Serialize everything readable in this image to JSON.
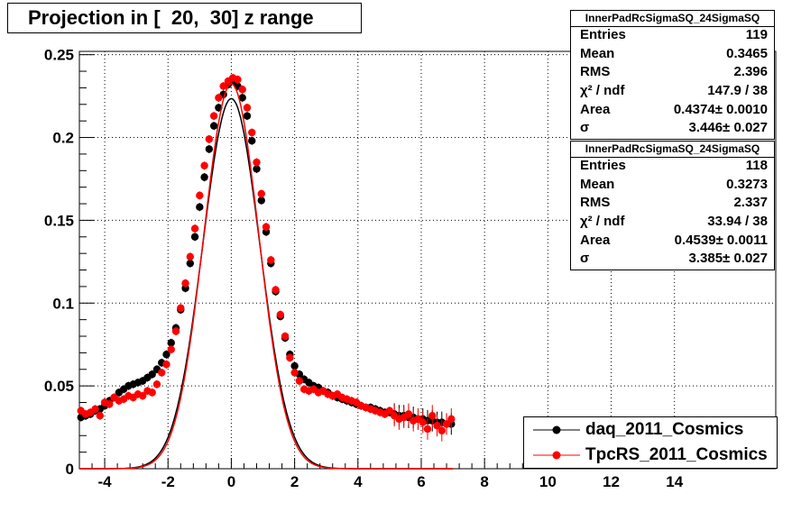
{
  "title": "Projection in [  20,  30] z range",
  "stats_boxes": [
    {
      "name": "InnerPadRcSigmaSQ_24SigmaSQ",
      "rows": [
        {
          "label": "Entries",
          "value": "119"
        },
        {
          "label": "Mean",
          "value": "0.3465"
        },
        {
          "label": "RMS",
          "value": "2.396"
        },
        {
          "label": "χ² / ndf",
          "value": "147.9 / 38"
        },
        {
          "label": "Area",
          "value": "0.4374± 0.0010"
        },
        {
          "label": "σ",
          "value": "3.446± 0.027"
        }
      ]
    },
    {
      "name": "InnerPadRcSigmaSQ_24SigmaSQ",
      "rows": [
        {
          "label": "Entries",
          "value": "118"
        },
        {
          "label": "Mean",
          "value": "0.3273"
        },
        {
          "label": "RMS",
          "value": "2.337"
        },
        {
          "label": "χ² / ndf",
          "value": "33.94 / 38"
        },
        {
          "label": "Area",
          "value": "0.4539± 0.0011"
        },
        {
          "label": "σ",
          "value": "3.385± 0.027"
        }
      ]
    }
  ],
  "legend": [
    {
      "label": "daq_2011_Cosmics",
      "color": "#000000"
    },
    {
      "label": "TpcRS_2011_Cosmics",
      "color": "#ff0000"
    }
  ],
  "chart_data": {
    "type": "scatter",
    "xlim": [
      -4.8,
      17.2
    ],
    "ylim": [
      0,
      0.252
    ],
    "xticks": [
      -4,
      -2,
      0,
      2,
      4,
      6,
      8,
      10,
      12,
      14
    ],
    "yticks": [
      0,
      0.05,
      0.1,
      0.15,
      0.2,
      0.25
    ],
    "xtick_labels": [
      "-4",
      "-2",
      "0",
      "2",
      "4",
      "6",
      "8",
      "10",
      "12",
      "14"
    ],
    "ytick_labels": [
      "0",
      "0.05",
      "0.1",
      "0.15",
      "0.2",
      "0.25"
    ],
    "grid": true,
    "series": [
      {
        "name": "daq_2011_Cosmics",
        "color": "#000000",
        "x": [
          -4.75,
          -4.6,
          -4.45,
          -4.3,
          -4.15,
          -4.0,
          -3.85,
          -3.7,
          -3.55,
          -3.4,
          -3.25,
          -3.1,
          -2.95,
          -2.8,
          -2.65,
          -2.5,
          -2.35,
          -2.2,
          -2.05,
          -1.9,
          -1.75,
          -1.6,
          -1.45,
          -1.3,
          -1.15,
          -1.0,
          -0.85,
          -0.7,
          -0.55,
          -0.4,
          -0.25,
          -0.1,
          0.05,
          0.2,
          0.35,
          0.5,
          0.65,
          0.8,
          0.95,
          1.1,
          1.25,
          1.4,
          1.55,
          1.7,
          1.85,
          2.0,
          2.15,
          2.3,
          2.45,
          2.6,
          2.75,
          2.9,
          3.05,
          3.2,
          3.35,
          3.5,
          3.65,
          3.8,
          3.95,
          4.1,
          4.25,
          4.4,
          4.55,
          4.7,
          4.85,
          5.0,
          5.15,
          5.3,
          5.45,
          5.6,
          5.75,
          5.9,
          6.05,
          6.2,
          6.35,
          6.5,
          6.65,
          6.8,
          6.95
        ],
        "y": [
          0.031,
          0.032,
          0.033,
          0.035,
          0.036,
          0.038,
          0.041,
          0.043,
          0.046,
          0.048,
          0.05,
          0.051,
          0.052,
          0.053,
          0.055,
          0.057,
          0.06,
          0.064,
          0.069,
          0.076,
          0.085,
          0.096,
          0.109,
          0.124,
          0.14,
          0.158,
          0.176,
          0.193,
          0.207,
          0.218,
          0.226,
          0.232,
          0.234,
          0.231,
          0.224,
          0.213,
          0.198,
          0.181,
          0.162,
          0.143,
          0.124,
          0.107,
          0.092,
          0.079,
          0.069,
          0.062,
          0.057,
          0.054,
          0.052,
          0.05,
          0.049,
          0.047,
          0.046,
          0.044,
          0.043,
          0.042,
          0.041,
          0.04,
          0.039,
          0.038,
          0.037,
          0.037,
          0.036,
          0.035,
          0.034,
          0.034,
          0.033,
          0.032,
          0.032,
          0.031,
          0.031,
          0.03,
          0.03,
          0.029,
          0.029,
          0.028,
          0.028,
          0.027,
          0.027
        ],
        "fit": {
          "peak": 0.2235,
          "sigma": 0.9,
          "base": 0.0
        }
      },
      {
        "name": "TpcRS_2011_Cosmics",
        "color": "#ff0000",
        "x": [
          -4.75,
          -4.6,
          -4.45,
          -4.3,
          -4.15,
          -4.0,
          -3.85,
          -3.7,
          -3.55,
          -3.4,
          -3.25,
          -3.1,
          -2.95,
          -2.8,
          -2.65,
          -2.5,
          -2.35,
          -2.2,
          -2.05,
          -1.9,
          -1.75,
          -1.6,
          -1.45,
          -1.3,
          -1.15,
          -1.0,
          -0.85,
          -0.7,
          -0.55,
          -0.4,
          -0.25,
          -0.1,
          0.05,
          0.2,
          0.35,
          0.5,
          0.65,
          0.8,
          0.95,
          1.1,
          1.25,
          1.4,
          1.55,
          1.7,
          1.85,
          2.0,
          2.15,
          2.3,
          2.45,
          2.6,
          2.75,
          2.9,
          3.05,
          3.2,
          3.35,
          3.5,
          3.65,
          3.8,
          3.95,
          4.1,
          4.25,
          4.4,
          4.55,
          4.7,
          4.85,
          5.0,
          5.15,
          5.3,
          5.45,
          5.6,
          5.75,
          5.9,
          6.05,
          6.2,
          6.35,
          6.5,
          6.65,
          6.8,
          6.95
        ],
        "y": [
          0.035,
          0.033,
          0.034,
          0.036,
          0.032,
          0.04,
          0.039,
          0.043,
          0.041,
          0.042,
          0.044,
          0.043,
          0.045,
          0.044,
          0.047,
          0.046,
          0.051,
          0.058,
          0.063,
          0.072,
          0.083,
          0.097,
          0.112,
          0.128,
          0.145,
          0.165,
          0.183,
          0.199,
          0.213,
          0.224,
          0.231,
          0.234,
          0.236,
          0.235,
          0.229,
          0.218,
          0.203,
          0.185,
          0.166,
          0.146,
          0.126,
          0.108,
          0.093,
          0.08,
          0.067,
          0.058,
          0.053,
          0.048,
          0.047,
          0.048,
          0.046,
          0.047,
          0.045,
          0.044,
          0.045,
          0.043,
          0.042,
          0.041,
          0.04,
          0.038,
          0.037,
          0.036,
          0.035,
          0.034,
          0.033,
          0.035,
          0.032,
          0.03,
          0.031,
          0.033,
          0.029,
          0.03,
          0.028,
          0.024,
          0.032,
          0.026,
          0.023,
          0.027,
          0.03
        ],
        "fit": {
          "peak": 0.2325,
          "sigma": 0.87,
          "base": 0.0
        }
      }
    ]
  }
}
